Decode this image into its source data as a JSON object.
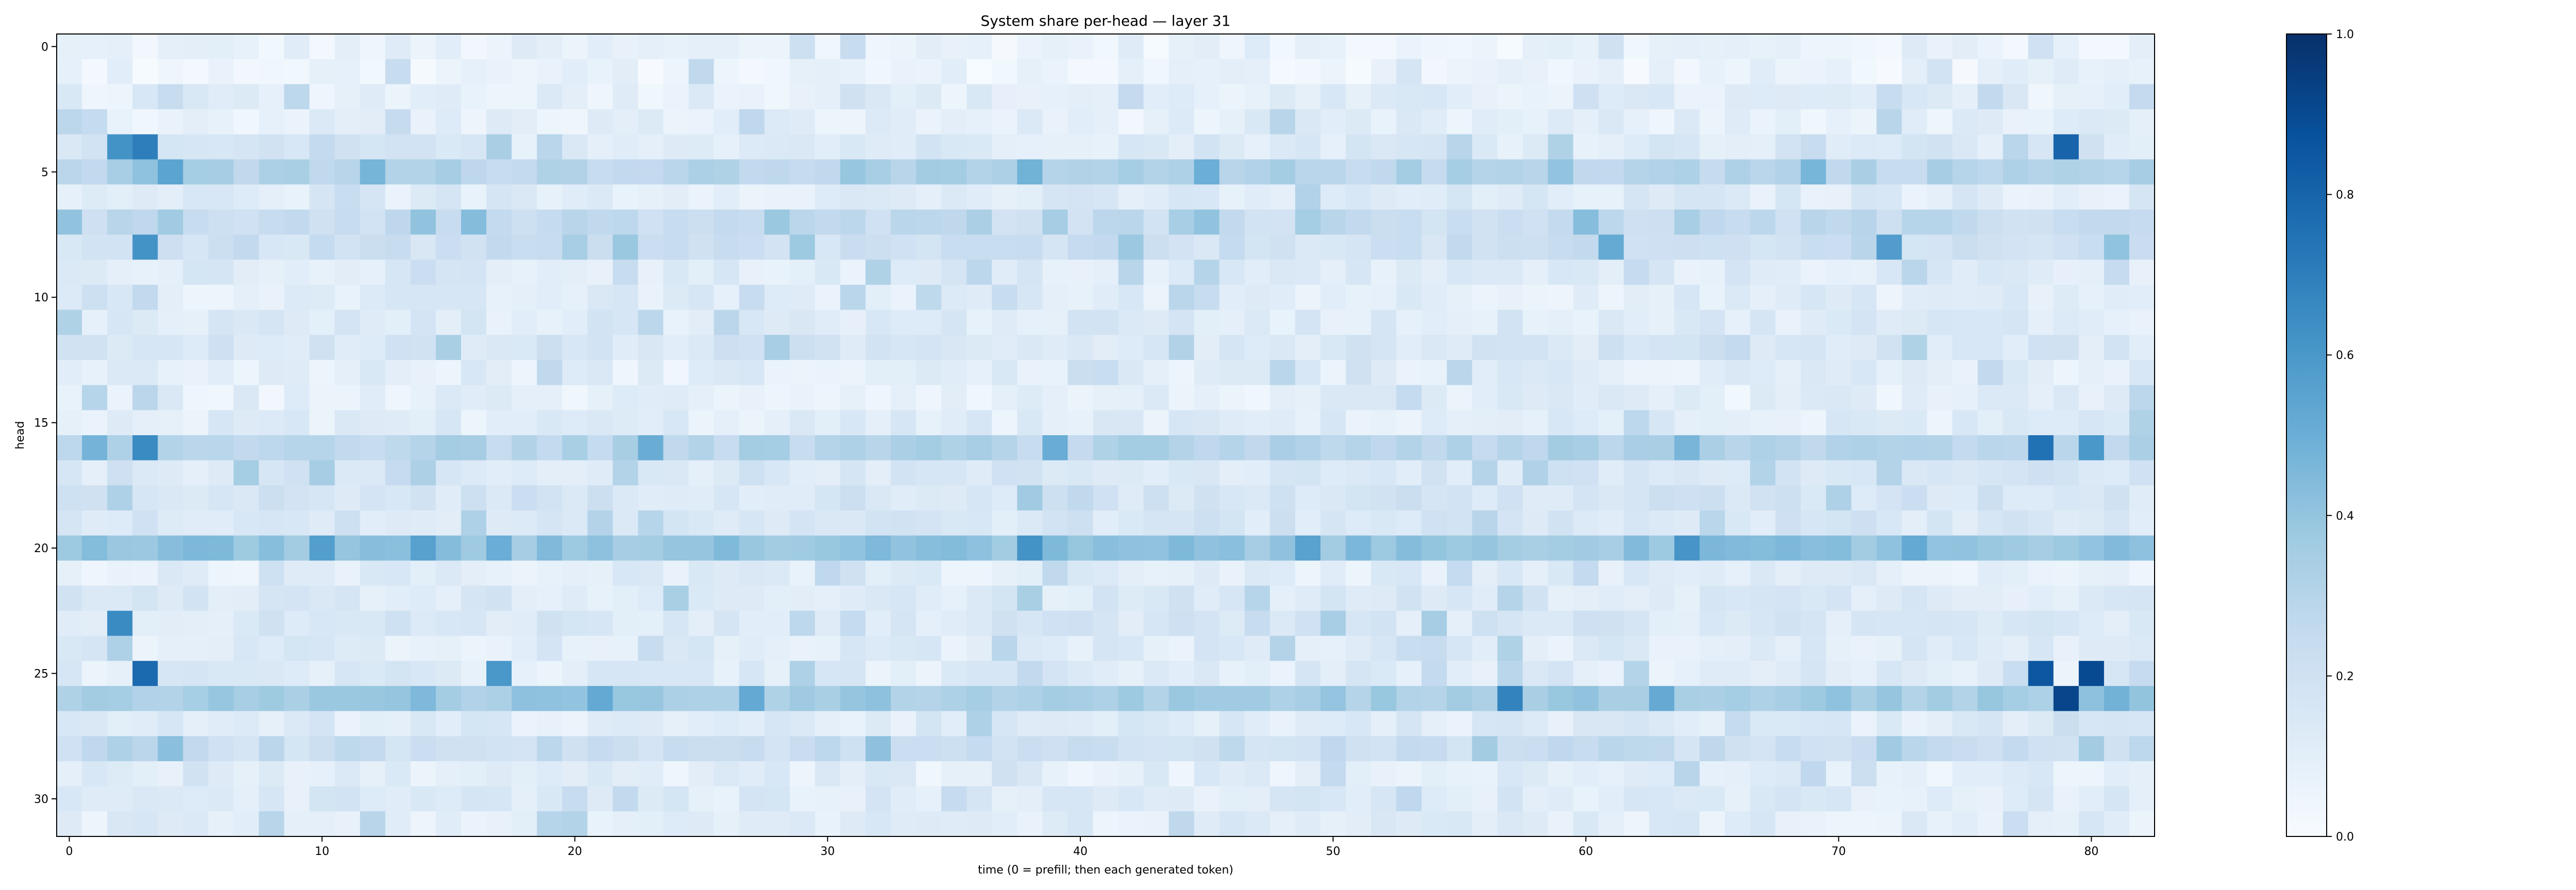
{
  "chart_data": {
    "type": "heatmap",
    "title": "System share per-head — layer 31",
    "xlabel": "time (0 = prefill; then each generated token)",
    "ylabel": "head",
    "xlim": [
      0,
      82
    ],
    "ylim": [
      0,
      31
    ],
    "n_cols": 83,
    "n_rows": 32,
    "x_ticks": [
      0,
      10,
      20,
      30,
      40,
      50,
      60,
      70,
      80
    ],
    "y_ticks": [
      0,
      5,
      10,
      15,
      20,
      25,
      30
    ],
    "colorbar": {
      "min": 0.0,
      "max": 1.0,
      "ticks": [
        "0.0",
        "0.2",
        "0.4",
        "0.6",
        "0.8",
        "1.0"
      ],
      "colormap": "Blues"
    },
    "grid": false,
    "row_base": [
      0.07,
      0.06,
      0.1,
      0.09,
      0.14,
      0.3,
      0.12,
      0.24,
      0.2,
      0.12,
      0.11,
      0.13,
      0.16,
      0.1,
      0.09,
      0.11,
      0.3,
      0.15,
      0.17,
      0.16,
      0.4,
      0.1,
      0.14,
      0.15,
      0.12,
      0.12,
      0.36,
      0.12,
      0.23,
      0.1,
      0.13,
      0.11
    ],
    "hotspots": [
      {
        "row": 4,
        "col": 2,
        "value": 0.62
      },
      {
        "row": 4,
        "col": 3,
        "value": 0.7
      },
      {
        "row": 4,
        "col": 79,
        "value": 0.8
      },
      {
        "row": 5,
        "col": 4,
        "value": 0.55
      },
      {
        "row": 5,
        "col": 45,
        "value": 0.5
      },
      {
        "row": 8,
        "col": 3,
        "value": 0.62
      },
      {
        "row": 8,
        "col": 72,
        "value": 0.58
      },
      {
        "row": 8,
        "col": 61,
        "value": 0.52
      },
      {
        "row": 16,
        "col": 3,
        "value": 0.65
      },
      {
        "row": 16,
        "col": 78,
        "value": 0.75
      },
      {
        "row": 16,
        "col": 80,
        "value": 0.6
      },
      {
        "row": 20,
        "col": 38,
        "value": 0.62
      },
      {
        "row": 23,
        "col": 2,
        "value": 0.65
      },
      {
        "row": 25,
        "col": 3,
        "value": 0.78
      },
      {
        "row": 25,
        "col": 17,
        "value": 0.6
      },
      {
        "row": 25,
        "col": 78,
        "value": 0.85
      },
      {
        "row": 25,
        "col": 80,
        "value": 0.9
      },
      {
        "row": 26,
        "col": 57,
        "value": 0.68
      },
      {
        "row": 26,
        "col": 79,
        "value": 0.92
      }
    ]
  }
}
